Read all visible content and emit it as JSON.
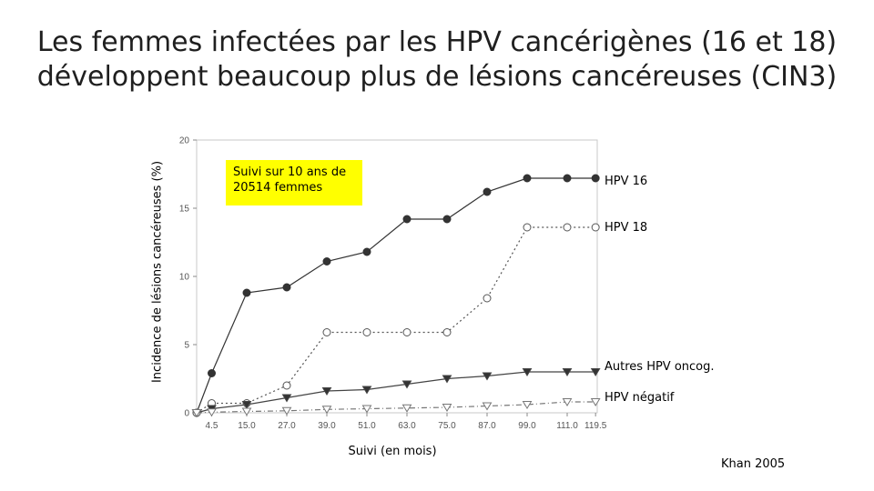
{
  "slide": {
    "title_line1": "Les femmes infectées par les HPV cancérigènes (16 et 18)",
    "title_line2": "développent beaucoup plus de lésions cancéreuses (CIN3)",
    "source": "Khan 2005"
  },
  "chart_data": {
    "type": "line",
    "title": "",
    "xlabel": "Suivi (en mois)",
    "ylabel": "Incidence de lésions cancéreuses (%)",
    "annotation": "Suivi sur 10 ans de 20514 femmes",
    "x": [
      0,
      4.5,
      15.0,
      27.0,
      39.0,
      51.0,
      63.0,
      75.0,
      87.0,
      99.0,
      111.0,
      119.5
    ],
    "x_tick_labels": [
      "4.5",
      "15.0",
      "27.0",
      "39.0",
      "51.0",
      "63.0",
      "75.0",
      "87.0",
      "99.0",
      "111.0",
      "119.5"
    ],
    "y_ticks": [
      "0",
      "5",
      "10",
      "15",
      "20"
    ],
    "ylim": [
      0,
      20
    ],
    "grid": false,
    "legend": "labels to the right of the plot",
    "series": [
      {
        "name": "HPV 16",
        "marker": "filled-circle",
        "line": "solid",
        "values": [
          0,
          2.9,
          8.8,
          9.2,
          11.1,
          11.8,
          14.2,
          14.2,
          16.2,
          17.2,
          17.2,
          17.2
        ]
      },
      {
        "name": "HPV 18",
        "marker": "open-circle",
        "line": "dotted",
        "values": [
          0,
          0.7,
          0.7,
          2.0,
          5.9,
          5.9,
          5.9,
          5.9,
          8.4,
          13.6,
          13.6,
          13.6
        ]
      },
      {
        "name": "Autres HPV oncog.",
        "marker": "filled-triangle-down",
        "line": "solid",
        "values": [
          0,
          0.3,
          0.6,
          1.1,
          1.6,
          1.7,
          2.1,
          2.5,
          2.7,
          3.0,
          3.0,
          3.0
        ]
      },
      {
        "name": "HPV négatif",
        "marker": "open-triangle-down",
        "line": "dash-dot",
        "values": [
          0,
          0.05,
          0.1,
          0.15,
          0.25,
          0.3,
          0.35,
          0.4,
          0.5,
          0.6,
          0.8,
          0.8
        ]
      }
    ]
  }
}
